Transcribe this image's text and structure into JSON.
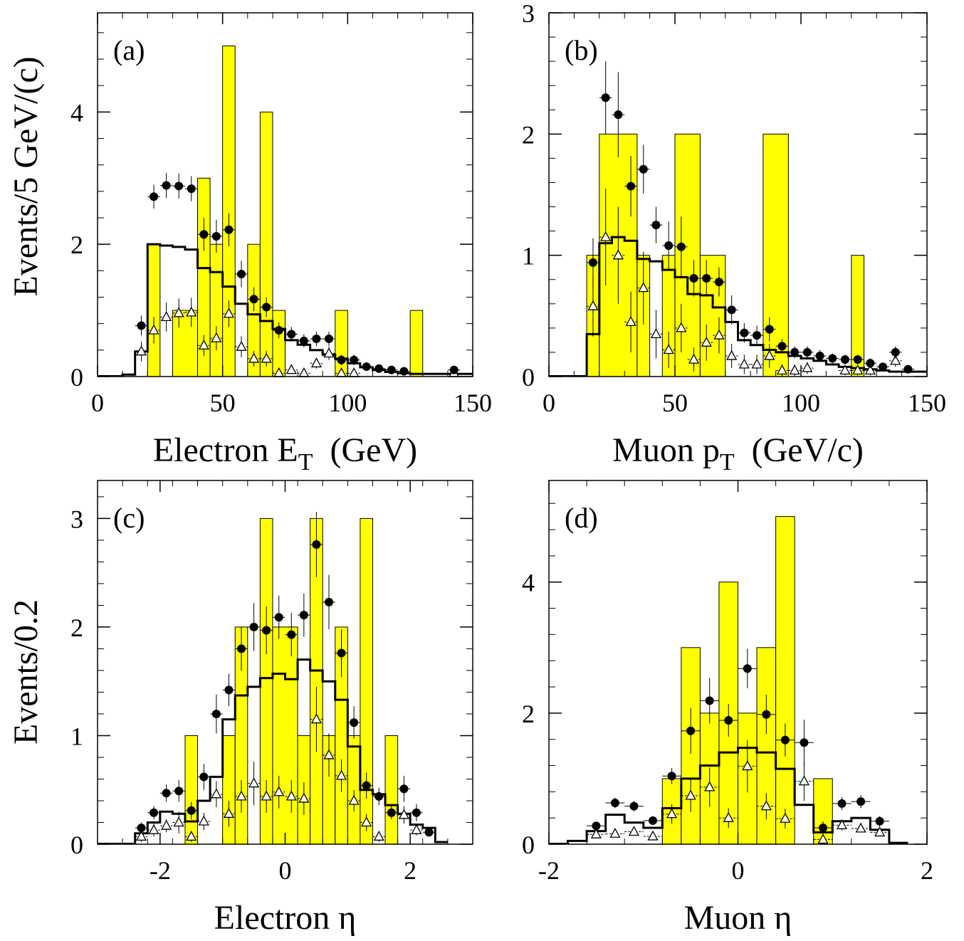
{
  "ylabels": {
    "top": "Events/5 GeV/(c)",
    "bottom": "Events/0.2"
  },
  "colors": {
    "bars": "#ffff00",
    "bar_edge": "#000000"
  },
  "chart_data": [
    {
      "type": "histogram",
      "panel_label": "(a)",
      "xlabel": "Electron E",
      "xlabel_sub": "T",
      "xlabel_tail": "(GeV)",
      "xlim": [
        0,
        150
      ],
      "ylim": [
        0,
        5.5
      ],
      "xticks": [
        0,
        50,
        100,
        150
      ],
      "yticks": [
        0,
        2,
        4
      ],
      "bin_width": 5,
      "bars": [
        [
          20,
          25,
          2
        ],
        [
          30,
          40,
          1
        ],
        [
          40,
          45,
          3
        ],
        [
          45,
          50,
          2
        ],
        [
          50,
          55,
          5
        ],
        [
          60,
          65,
          2
        ],
        [
          65,
          70,
          4
        ],
        [
          70,
          75,
          1
        ],
        [
          95,
          100,
          1
        ],
        [
          125,
          130,
          1
        ]
      ],
      "solid_line": {
        "edges": [
          10,
          15,
          20,
          25,
          30,
          35,
          40,
          45,
          50,
          55,
          60,
          65,
          70,
          75,
          80,
          85,
          90,
          95,
          100,
          105,
          110,
          115,
          120,
          125,
          150
        ],
        "values": [
          0.03,
          0.38,
          2.0,
          1.98,
          1.96,
          1.92,
          1.64,
          1.58,
          1.36,
          1.1,
          0.94,
          0.84,
          0.72,
          0.55,
          0.48,
          0.4,
          0.33,
          0.27,
          0.2,
          0.14,
          0.1,
          0.07,
          0.05,
          0.04
        ]
      },
      "filled_points": [
        [
          17.5,
          0.77,
          0.15
        ],
        [
          22.5,
          2.72,
          0.18
        ],
        [
          27.5,
          2.89,
          0.19
        ],
        [
          32.5,
          2.88,
          0.19
        ],
        [
          37.5,
          2.84,
          0.19
        ],
        [
          42.5,
          2.15,
          0.25
        ],
        [
          47.5,
          2.12,
          0.25
        ],
        [
          52.5,
          2.22,
          0.25
        ],
        [
          57.5,
          1.55,
          0.2
        ],
        [
          62.5,
          1.17,
          0.18
        ],
        [
          67.5,
          1.05,
          0.15
        ],
        [
          72.5,
          0.7,
          0.12
        ],
        [
          77.5,
          0.64,
          0.11
        ],
        [
          82.5,
          0.54,
          0.1
        ],
        [
          87.5,
          0.57,
          0.11
        ],
        [
          92.5,
          0.57,
          0.11
        ],
        [
          97.5,
          0.25,
          0.08
        ],
        [
          102.5,
          0.25,
          0.08
        ],
        [
          107.5,
          0.15,
          0.06
        ],
        [
          112.5,
          0.12,
          0.05
        ],
        [
          117.5,
          0.1,
          0.05
        ],
        [
          122.5,
          0.08,
          0.04
        ],
        [
          142.5,
          0.1,
          0.04
        ]
      ],
      "open_points": [
        [
          17.5,
          0.38,
          0.15
        ],
        [
          22.5,
          0.7,
          0.2
        ],
        [
          27.5,
          0.9,
          0.22
        ],
        [
          32.5,
          0.96,
          0.22
        ],
        [
          37.5,
          0.97,
          0.22
        ],
        [
          42.5,
          0.47,
          0.16
        ],
        [
          47.5,
          0.58,
          0.18
        ],
        [
          52.5,
          0.95,
          0.2
        ],
        [
          57.5,
          0.45,
          0.16
        ],
        [
          62.5,
          0.27,
          0.12
        ],
        [
          67.5,
          0.27,
          0.12
        ],
        [
          72.5,
          0.05,
          0.05
        ],
        [
          77.5,
          0.1,
          0.05
        ],
        [
          82.5,
          0.05,
          0.05
        ],
        [
          87.5,
          0.2,
          0.08
        ],
        [
          92.5,
          0.35,
          0.1
        ],
        [
          97.5,
          0.05,
          0.05
        ],
        [
          102.5,
          0.05,
          0.05
        ],
        [
          142.5,
          0.05,
          0.04
        ]
      ]
    },
    {
      "type": "histogram",
      "panel_label": "(b)",
      "xlabel": "Muon p",
      "xlabel_sub": "T",
      "xlabel_tail": "(GeV/c)",
      "xlim": [
        0,
        150
      ],
      "ylim": [
        0,
        3
      ],
      "xticks": [
        0,
        50,
        100,
        150
      ],
      "yticks": [
        0,
        1,
        2,
        3
      ],
      "bin_width": 5,
      "bars": [
        [
          15,
          20,
          1
        ],
        [
          20,
          35,
          2
        ],
        [
          35,
          40,
          1
        ],
        [
          45,
          50,
          1
        ],
        [
          50,
          60,
          2
        ],
        [
          60,
          70,
          1
        ],
        [
          85,
          95,
          2
        ],
        [
          120,
          125,
          1
        ]
      ],
      "solid_line": {
        "edges": [
          15,
          20,
          25,
          30,
          35,
          40,
          45,
          50,
          55,
          60,
          65,
          70,
          75,
          80,
          85,
          90,
          95,
          100,
          105,
          110,
          115,
          120,
          125,
          130,
          135,
          150
        ],
        "values": [
          0.35,
          1.1,
          1.15,
          1.12,
          0.97,
          0.95,
          0.88,
          0.82,
          0.68,
          0.67,
          0.57,
          0.45,
          0.3,
          0.26,
          0.22,
          0.2,
          0.17,
          0.15,
          0.13,
          0.1,
          0.08,
          0.07,
          0.06,
          0.05,
          0.04
        ]
      },
      "filled_points": [
        [
          17.5,
          0.94,
          0.2
        ],
        [
          22.5,
          2.3,
          0.3
        ],
        [
          27.5,
          2.16,
          0.35
        ],
        [
          32.5,
          1.57,
          0.25
        ],
        [
          37.5,
          1.71,
          0.2
        ],
        [
          42.5,
          1.25,
          0.15
        ],
        [
          47.5,
          1.08,
          0.2
        ],
        [
          52.5,
          1.07,
          0.25
        ],
        [
          57.5,
          0.81,
          0.15
        ],
        [
          62.5,
          0.81,
          0.15
        ],
        [
          67.5,
          0.78,
          0.12
        ],
        [
          72.5,
          0.55,
          0.12
        ],
        [
          77.5,
          0.36,
          0.08
        ],
        [
          82.5,
          0.34,
          0.08
        ],
        [
          87.5,
          0.39,
          0.1
        ],
        [
          92.5,
          0.25,
          0.06
        ],
        [
          97.5,
          0.2,
          0.05
        ],
        [
          102.5,
          0.2,
          0.05
        ],
        [
          107.5,
          0.17,
          0.05
        ],
        [
          112.5,
          0.15,
          0.04
        ],
        [
          117.5,
          0.14,
          0.04
        ],
        [
          122.5,
          0.14,
          0.04
        ],
        [
          127.5,
          0.11,
          0.04
        ],
        [
          132.5,
          0.08,
          0.03
        ],
        [
          137.5,
          0.2,
          0.05
        ],
        [
          142.5,
          0.06,
          0.03
        ]
      ],
      "open_points": [
        [
          17.5,
          0.58,
          0.25
        ],
        [
          22.5,
          1.15,
          0.4
        ],
        [
          27.5,
          1.0,
          0.4
        ],
        [
          32.5,
          0.45,
          0.25
        ],
        [
          37.5,
          0.73,
          0.3
        ],
        [
          42.5,
          0.35,
          0.2
        ],
        [
          47.5,
          0.22,
          0.15
        ],
        [
          52.5,
          0.4,
          0.2
        ],
        [
          57.5,
          0.14,
          0.1
        ],
        [
          62.5,
          0.28,
          0.15
        ],
        [
          67.5,
          0.34,
          0.15
        ],
        [
          72.5,
          0.17,
          0.1
        ],
        [
          77.5,
          0.1,
          0.08
        ],
        [
          82.5,
          0.1,
          0.08
        ],
        [
          87.5,
          0.17,
          0.1
        ],
        [
          92.5,
          0.05,
          0.05
        ],
        [
          97.5,
          0.05,
          0.05
        ],
        [
          102.5,
          0.07,
          0.05
        ],
        [
          117.5,
          0.05,
          0.04
        ],
        [
          122.5,
          0.05,
          0.04
        ],
        [
          127.5,
          0.05,
          0.04
        ],
        [
          137.5,
          0.13,
          0.05
        ]
      ]
    },
    {
      "type": "histogram",
      "panel_label": "(c)",
      "xlabel": "Electron  η",
      "xlabel_sub": "",
      "xlabel_tail": "",
      "xlim": [
        -3,
        3
      ],
      "ylim": [
        0,
        3.35
      ],
      "xticks": [
        -2,
        0,
        2
      ],
      "yticks": [
        0,
        1,
        2,
        3
      ],
      "bin_width": 0.2,
      "bars": [
        [
          -1.6,
          -1.4,
          1
        ],
        [
          -1.0,
          -0.8,
          1
        ],
        [
          -0.8,
          -0.6,
          2
        ],
        [
          -0.4,
          -0.2,
          3
        ],
        [
          -0.2,
          0.2,
          2
        ],
        [
          0.2,
          0.4,
          1
        ],
        [
          0.4,
          0.6,
          3
        ],
        [
          0.6,
          0.8,
          1
        ],
        [
          0.8,
          1.0,
          2
        ],
        [
          1.0,
          1.2,
          1
        ],
        [
          1.2,
          1.4,
          3
        ],
        [
          1.6,
          1.8,
          1
        ]
      ],
      "solid_line": {
        "edges": [
          -2.4,
          -2.2,
          -2.0,
          -1.8,
          -1.6,
          -1.4,
          -1.2,
          -1.0,
          -0.8,
          -0.6,
          -0.4,
          -0.2,
          0.0,
          0.2,
          0.4,
          0.6,
          0.8,
          1.0,
          1.2,
          1.4,
          1.6,
          1.8,
          2.0,
          2.2,
          2.4,
          2.6
        ],
        "values": [
          0.1,
          0.2,
          0.3,
          0.28,
          0.21,
          0.4,
          0.62,
          1.15,
          1.37,
          1.45,
          1.53,
          1.57,
          1.52,
          1.7,
          1.6,
          1.5,
          1.33,
          0.9,
          0.5,
          0.46,
          0.36,
          0.28,
          0.18,
          0.15,
          0.02
        ]
      },
      "filled_points": [
        [
          -2.3,
          0.15,
          0.05
        ],
        [
          -2.1,
          0.29,
          0.06
        ],
        [
          -1.9,
          0.47,
          0.08
        ],
        [
          -1.7,
          0.49,
          0.1
        ],
        [
          -1.5,
          0.31,
          0.08
        ],
        [
          -1.3,
          0.62,
          0.12
        ],
        [
          -1.1,
          1.2,
          0.18
        ],
        [
          -0.9,
          1.42,
          0.15
        ],
        [
          -0.7,
          1.8,
          0.2
        ],
        [
          -0.5,
          2.0,
          0.22
        ],
        [
          -0.3,
          1.97,
          0.22
        ],
        [
          -0.1,
          2.09,
          0.2
        ],
        [
          0.1,
          1.93,
          0.2
        ],
        [
          0.3,
          2.11,
          0.2
        ],
        [
          0.5,
          2.76,
          0.3
        ],
        [
          0.7,
          2.23,
          0.25
        ],
        [
          0.9,
          1.76,
          0.22
        ],
        [
          1.1,
          1.12,
          0.15
        ],
        [
          1.3,
          0.54,
          0.12
        ],
        [
          1.5,
          0.44,
          0.08
        ],
        [
          1.7,
          0.29,
          0.06
        ],
        [
          1.9,
          0.51,
          0.12
        ],
        [
          2.1,
          0.29,
          0.08
        ],
        [
          2.3,
          0.11,
          0.04
        ]
      ],
      "open_points": [
        [
          -2.3,
          0.07,
          0.05
        ],
        [
          -2.1,
          0.13,
          0.06
        ],
        [
          -1.9,
          0.17,
          0.06
        ],
        [
          -1.7,
          0.2,
          0.1
        ],
        [
          -1.5,
          0.07,
          0.05
        ],
        [
          -1.3,
          0.21,
          0.08
        ],
        [
          -1.1,
          0.46,
          0.12
        ],
        [
          -0.9,
          0.28,
          0.12
        ],
        [
          -0.7,
          0.44,
          0.15
        ],
        [
          -0.5,
          0.56,
          0.2
        ],
        [
          -0.3,
          0.44,
          0.15
        ],
        [
          -0.1,
          0.48,
          0.15
        ],
        [
          0.1,
          0.44,
          0.15
        ],
        [
          0.3,
          0.42,
          0.15
        ],
        [
          0.5,
          1.15,
          0.3
        ],
        [
          0.7,
          0.82,
          0.2
        ],
        [
          0.9,
          0.63,
          0.15
        ],
        [
          1.1,
          0.4,
          0.1
        ],
        [
          1.3,
          0.2,
          0.08
        ],
        [
          1.5,
          0.07,
          0.05
        ],
        [
          1.9,
          0.27,
          0.08
        ],
        [
          2.1,
          0.13,
          0.05
        ]
      ]
    },
    {
      "type": "histogram",
      "panel_label": "(d)",
      "xlabel": "Muon η",
      "xlabel_sub": "",
      "xlabel_tail": "",
      "xlim": [
        -2,
        2
      ],
      "ylim": [
        0,
        5.55
      ],
      "xticks": [
        -2,
        0,
        2
      ],
      "yticks": [
        0,
        2,
        4
      ],
      "bin_width": 0.2,
      "bars": [
        [
          -0.8,
          -0.6,
          1
        ],
        [
          -0.6,
          -0.4,
          3
        ],
        [
          -0.4,
          -0.2,
          2
        ],
        [
          -0.2,
          0.0,
          4
        ],
        [
          0.0,
          0.2,
          2
        ],
        [
          0.2,
          0.4,
          3
        ],
        [
          0.4,
          0.6,
          5
        ],
        [
          0.8,
          1.0,
          1
        ]
      ],
      "solid_line": {
        "edges": [
          -1.8,
          -1.6,
          -1.4,
          -1.2,
          -1.0,
          -0.8,
          -0.6,
          -0.4,
          -0.2,
          0.0,
          0.2,
          0.4,
          0.6,
          0.8,
          1.0,
          1.2,
          1.4,
          1.6,
          1.8
        ],
        "values": [
          0.05,
          0.2,
          0.45,
          0.33,
          0.25,
          0.55,
          1.0,
          1.2,
          1.4,
          1.47,
          1.4,
          1.15,
          0.6,
          0.18,
          0.35,
          0.4,
          0.22,
          0.02
        ]
      },
      "filled_points": [
        [
          -1.5,
          0.28,
          0.06
        ],
        [
          -1.3,
          0.63,
          0.08
        ],
        [
          -1.1,
          0.58,
          0.08
        ],
        [
          -0.9,
          0.36,
          0.06
        ],
        [
          -0.7,
          1.04,
          0.12
        ],
        [
          -0.5,
          1.73,
          0.35
        ],
        [
          -0.3,
          2.19,
          0.35
        ],
        [
          -0.1,
          1.89,
          0.25
        ],
        [
          0.1,
          2.68,
          0.3
        ],
        [
          0.3,
          1.98,
          0.3
        ],
        [
          0.5,
          1.59,
          0.25
        ],
        [
          0.7,
          1.55,
          0.35
        ],
        [
          0.9,
          0.25,
          0.1
        ],
        [
          1.1,
          0.62,
          0.1
        ],
        [
          1.3,
          0.65,
          0.1
        ],
        [
          1.5,
          0.35,
          0.08
        ]
      ],
      "open_points": [
        [
          -1.5,
          0.15,
          0.05
        ],
        [
          -1.3,
          0.16,
          0.05
        ],
        [
          -1.1,
          0.19,
          0.05
        ],
        [
          -0.9,
          0.12,
          0.05
        ],
        [
          -0.7,
          0.46,
          0.15
        ],
        [
          -0.5,
          0.74,
          0.25
        ],
        [
          -0.3,
          0.87,
          0.3
        ],
        [
          -0.1,
          0.4,
          0.15
        ],
        [
          0.1,
          1.19,
          0.4
        ],
        [
          0.3,
          0.58,
          0.2
        ],
        [
          0.5,
          0.39,
          0.15
        ],
        [
          0.7,
          0.96,
          0.3
        ],
        [
          0.9,
          0.07,
          0.05
        ],
        [
          1.1,
          0.29,
          0.08
        ],
        [
          1.3,
          0.24,
          0.06
        ],
        [
          1.5,
          0.18,
          0.05
        ]
      ]
    }
  ]
}
